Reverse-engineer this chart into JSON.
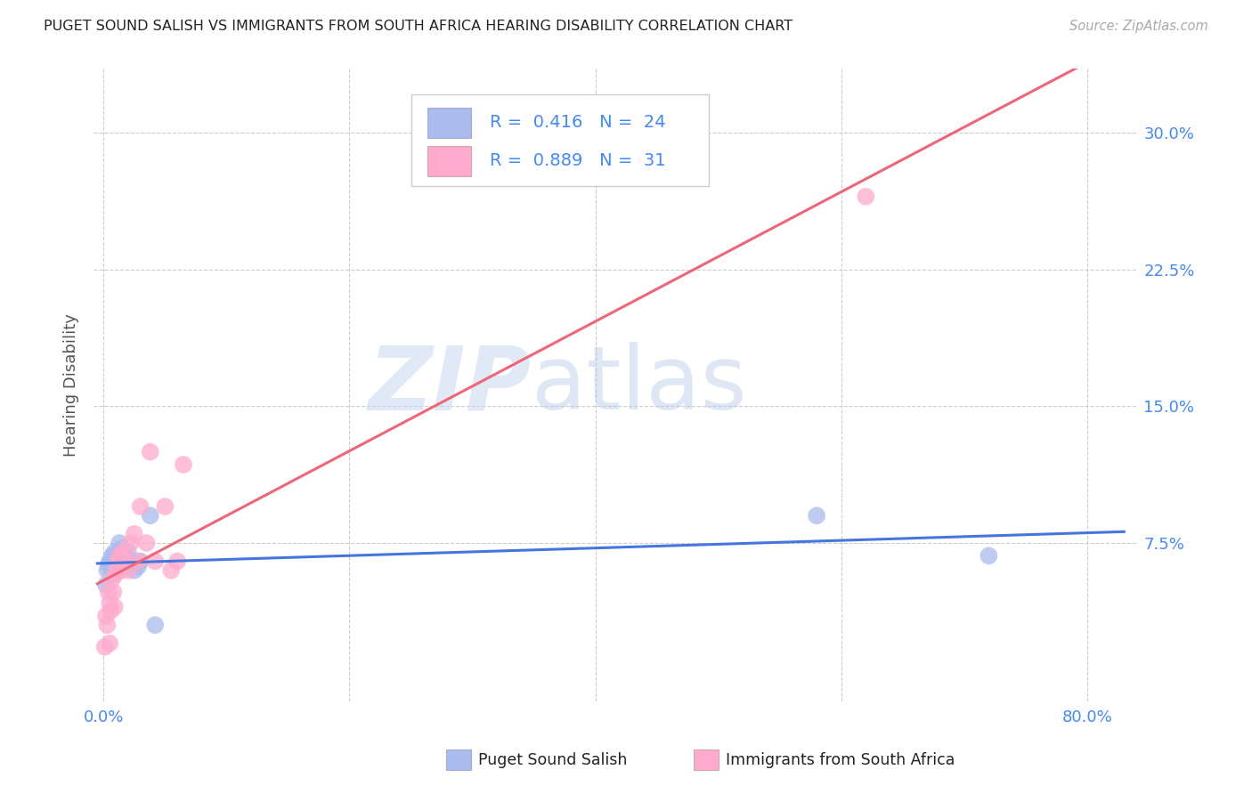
{
  "title": "PUGET SOUND SALISH VS IMMIGRANTS FROM SOUTH AFRICA HEARING DISABILITY CORRELATION CHART",
  "source": "Source: ZipAtlas.com",
  "ylabel": "Hearing Disability",
  "xlim": [
    -0.008,
    0.84
  ],
  "ylim": [
    -0.012,
    0.335
  ],
  "x_tick_positions": [
    0.0,
    0.2,
    0.4,
    0.6,
    0.8
  ],
  "x_tick_labels": [
    "0.0%",
    "",
    "",
    "",
    "80.0%"
  ],
  "y_tick_positions": [
    0.075,
    0.15,
    0.225,
    0.3
  ],
  "y_tick_labels": [
    "7.5%",
    "15.0%",
    "22.5%",
    "30.0%"
  ],
  "R_blue": 0.416,
  "N_blue": 24,
  "R_pink": 0.889,
  "N_pink": 31,
  "blue_line_color": "#4477dd",
  "pink_line_color": "#ee6677",
  "blue_scatter_color": "#aabbee",
  "pink_scatter_color": "#ffaacc",
  "blue_x": [
    0.002,
    0.003,
    0.004,
    0.005,
    0.006,
    0.007,
    0.008,
    0.009,
    0.01,
    0.011,
    0.012,
    0.013,
    0.015,
    0.016,
    0.018,
    0.02,
    0.022,
    0.025,
    0.028,
    0.03,
    0.038,
    0.042,
    0.58,
    0.72
  ],
  "blue_y": [
    0.052,
    0.06,
    0.063,
    0.065,
    0.062,
    0.068,
    0.058,
    0.07,
    0.06,
    0.065,
    0.068,
    0.075,
    0.072,
    0.068,
    0.062,
    0.07,
    0.065,
    0.06,
    0.062,
    0.065,
    0.09,
    0.03,
    0.09,
    0.068
  ],
  "pink_x": [
    0.001,
    0.002,
    0.003,
    0.004,
    0.005,
    0.005,
    0.006,
    0.007,
    0.008,
    0.009,
    0.01,
    0.011,
    0.012,
    0.013,
    0.014,
    0.015,
    0.016,
    0.018,
    0.02,
    0.022,
    0.025,
    0.028,
    0.03,
    0.035,
    0.038,
    0.042,
    0.05,
    0.055,
    0.06,
    0.065,
    0.62
  ],
  "pink_y": [
    0.018,
    0.035,
    0.03,
    0.048,
    0.042,
    0.02,
    0.038,
    0.055,
    0.048,
    0.04,
    0.058,
    0.06,
    0.065,
    0.068,
    0.06,
    0.068,
    0.07,
    0.065,
    0.06,
    0.075,
    0.08,
    0.065,
    0.095,
    0.075,
    0.125,
    0.065,
    0.095,
    0.06,
    0.065,
    0.118,
    0.265
  ],
  "watermark_zip": "ZIP",
  "watermark_atlas": "atlas",
  "background_color": "#ffffff",
  "grid_color": "#cccccc",
  "title_color": "#222222",
  "tick_label_color": "#4488ff",
  "ylabel_color": "#555555"
}
